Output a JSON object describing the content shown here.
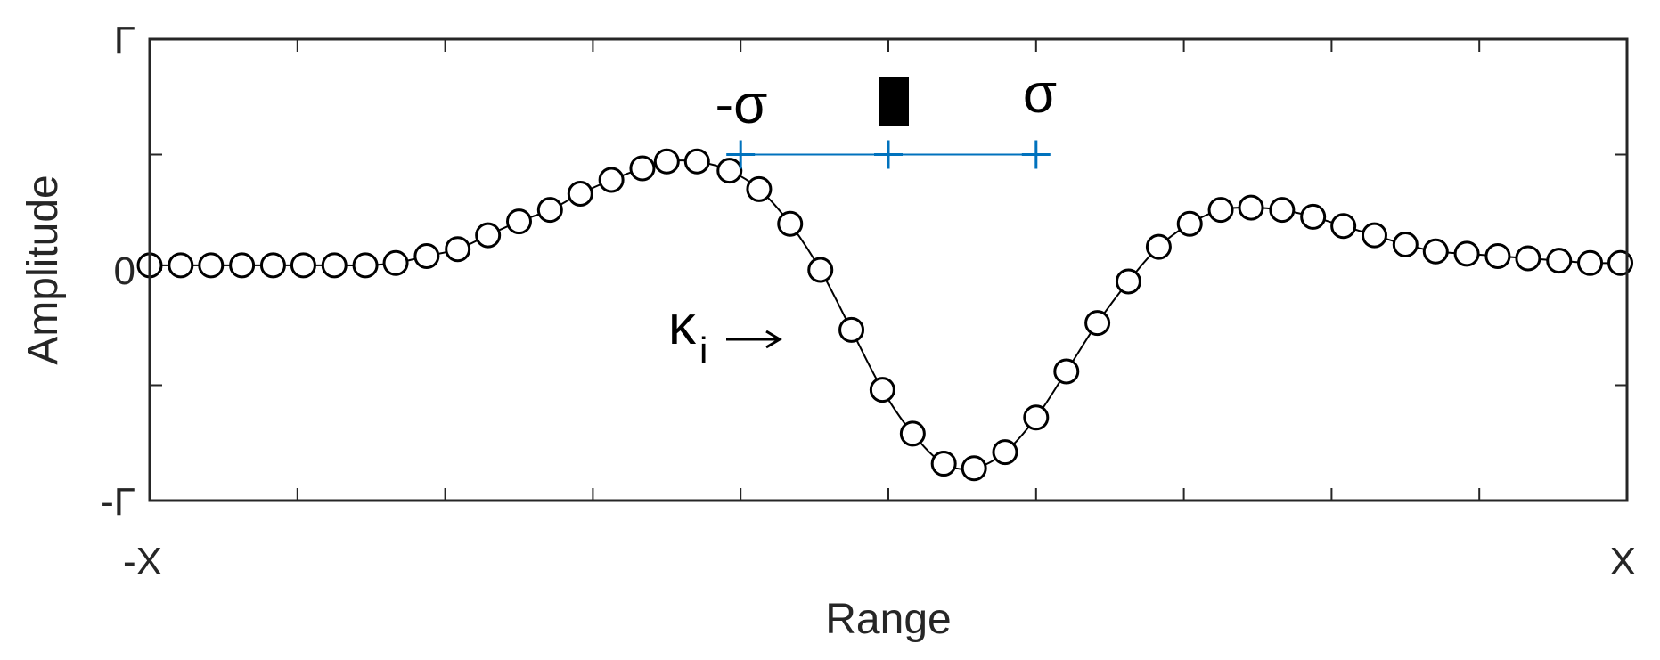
{
  "chart_data": {
    "type": "line",
    "title": "",
    "xlabel": "Range",
    "ylabel": "Amplitude",
    "xlim": [
      -1,
      1
    ],
    "ylim": [
      -1,
      1
    ],
    "x_ticks": [
      -1,
      -0.8,
      -0.6,
      -0.4,
      -0.2,
      0,
      0.2,
      0.4,
      0.6,
      0.8,
      1
    ],
    "x_tick_labels": {
      "-1": "-X",
      "1": "X"
    },
    "y_ticks": [
      -1,
      -0.5,
      0,
      0.5,
      1
    ],
    "y_tick_labels": {
      "-1": "-Γ",
      "0": "0",
      "1": "Γ"
    },
    "grid": false,
    "series": [
      {
        "style": "line-with-circle-markers",
        "color": "#000000",
        "x": [
          -1.0,
          -0.958,
          -0.917,
          -0.875,
          -0.833,
          -0.792,
          -0.75,
          -0.708,
          -0.667,
          -0.625,
          -0.583,
          -0.542,
          -0.5,
          -0.458,
          -0.417,
          -0.375,
          -0.333,
          -0.3,
          -0.259,
          -0.215,
          -0.175,
          -0.133,
          -0.092,
          -0.05,
          -0.008,
          0.033,
          0.075,
          0.116,
          0.158,
          0.2,
          0.241,
          0.283,
          0.325,
          0.366,
          0.408,
          0.45,
          0.491,
          0.533,
          0.575,
          0.616,
          0.658,
          0.7,
          0.741,
          0.783,
          0.825,
          0.866,
          0.908,
          0.95,
          0.991
        ],
        "y": [
          0.02,
          0.02,
          0.02,
          0.02,
          0.02,
          0.02,
          0.02,
          0.02,
          0.03,
          0.06,
          0.09,
          0.15,
          0.21,
          0.26,
          0.33,
          0.39,
          0.44,
          0.47,
          0.47,
          0.43,
          0.35,
          0.2,
          0.0,
          -0.26,
          -0.52,
          -0.71,
          -0.84,
          -0.86,
          -0.79,
          -0.64,
          -0.44,
          -0.23,
          -0.05,
          0.1,
          0.2,
          0.26,
          0.27,
          0.26,
          0.23,
          0.19,
          0.15,
          0.11,
          0.08,
          0.07,
          0.06,
          0.05,
          0.04,
          0.03,
          0.03
        ]
      },
      {
        "style": "line-with-plus-markers",
        "color": "#0072BD",
        "x": [
          -0.2,
          0,
          0.2
        ],
        "y": [
          0.5,
          0.5,
          0.5
        ]
      }
    ],
    "annotations": {
      "minus_sigma": "-σ",
      "sigma": "σ",
      "kappa": "κ",
      "kappa_sub": "i",
      "arrow": "→"
    }
  }
}
